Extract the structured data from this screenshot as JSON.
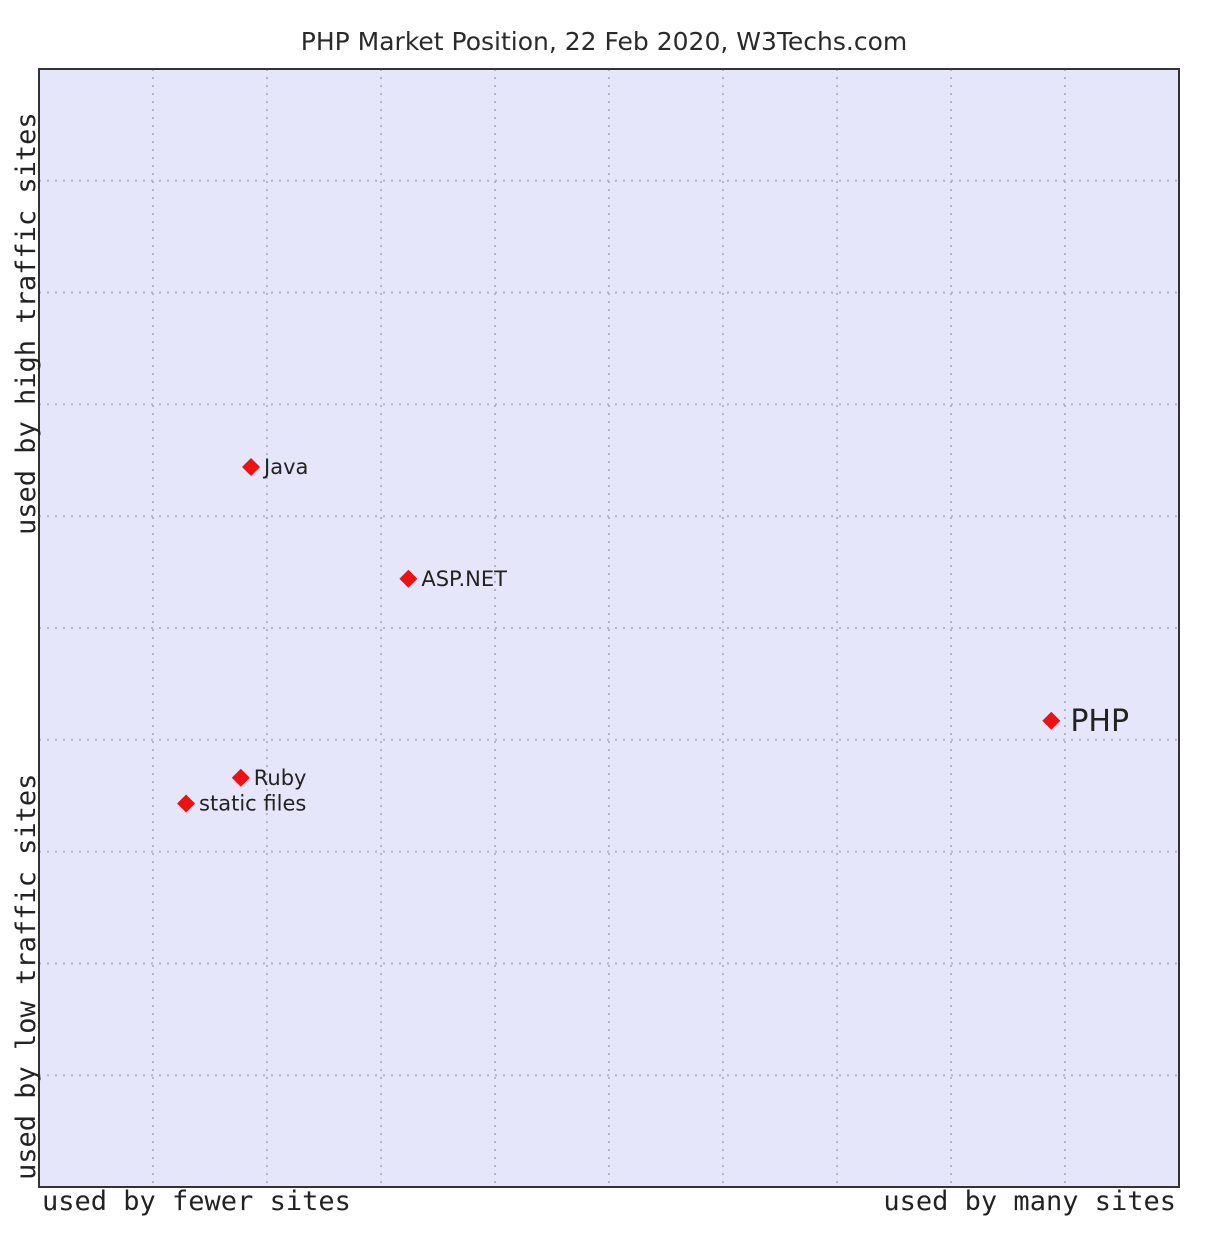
{
  "chart_data": {
    "type": "scatter",
    "title": "PHP Market Position, 22 Feb 2020, W3Techs.com",
    "xlabel_left": "used by fewer sites",
    "xlabel_right": "used by many sites",
    "ylabel_low": "used by low traffic sites",
    "ylabel_high": "used by high traffic sites",
    "xlim": [
      0,
      10
    ],
    "ylim": [
      0,
      10
    ],
    "grid": true,
    "colors": {
      "plot_background": "#e6e6fa",
      "grid": "#b4b4c8",
      "frame": "#333333",
      "marker": "#ee1111"
    },
    "points": [
      {
        "label": "Java",
        "x": 1.86,
        "y": 6.44,
        "emphasis": false
      },
      {
        "label": "ASP.NET",
        "x": 3.24,
        "y": 5.44,
        "emphasis": false
      },
      {
        "label": "PHP",
        "x": 8.88,
        "y": 4.17,
        "emphasis": true
      },
      {
        "label": "Ruby",
        "x": 1.77,
        "y": 3.66,
        "emphasis": false
      },
      {
        "label": "static files",
        "x": 1.29,
        "y": 3.43,
        "emphasis": false
      }
    ]
  }
}
